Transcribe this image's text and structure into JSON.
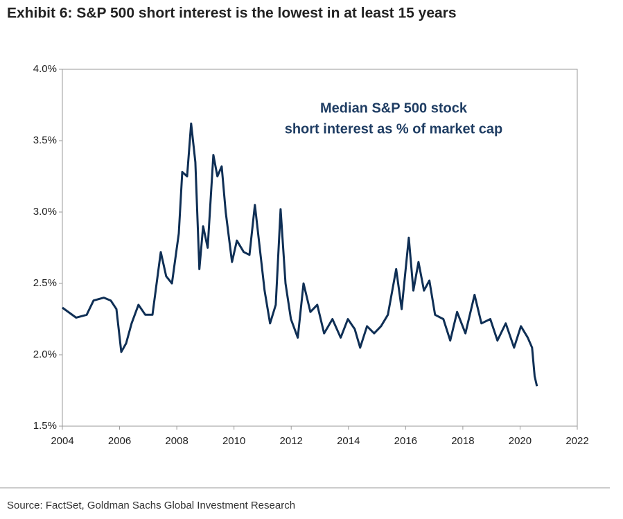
{
  "chart_data": {
    "type": "line",
    "title": "Exhibit 6: S&P 500 short interest is the lowest in at least 15 years",
    "annotation": [
      "Median S&P 500 stock",
      "short interest as % of market cap"
    ],
    "source": "Source: FactSet, Goldman Sachs Global Investment Research",
    "color": "#0f2f55",
    "x": [
      2004.0,
      2004.48,
      2004.85,
      2005.09,
      2005.45,
      2005.69,
      2005.89,
      2006.06,
      2006.23,
      2006.42,
      2006.66,
      2006.9,
      2007.15,
      2007.44,
      2007.63,
      2007.83,
      2008.07,
      2008.19,
      2008.36,
      2008.5,
      2008.65,
      2008.79,
      2008.92,
      2009.08,
      2009.28,
      2009.42,
      2009.57,
      2009.71,
      2009.93,
      2010.1,
      2010.34,
      2010.54,
      2010.73,
      2010.9,
      2011.07,
      2011.26,
      2011.46,
      2011.63,
      2011.8,
      2011.99,
      2012.23,
      2012.43,
      2012.67,
      2012.91,
      2013.15,
      2013.44,
      2013.73,
      2013.98,
      2014.22,
      2014.41,
      2014.65,
      2014.9,
      2015.14,
      2015.38,
      2015.67,
      2015.86,
      2016.11,
      2016.27,
      2016.45,
      2016.64,
      2016.83,
      2017.03,
      2017.32,
      2017.56,
      2017.8,
      2018.09,
      2018.41,
      2018.65,
      2018.96,
      2019.21,
      2019.5,
      2019.79,
      2020.03,
      2020.27,
      2020.42,
      2020.51,
      2020.59
    ],
    "values": [
      2.33,
      2.26,
      2.28,
      2.38,
      2.4,
      2.38,
      2.32,
      2.02,
      2.08,
      2.22,
      2.35,
      2.28,
      2.28,
      2.72,
      2.55,
      2.5,
      2.85,
      3.28,
      3.25,
      3.62,
      3.35,
      2.6,
      2.9,
      2.75,
      3.4,
      3.25,
      3.32,
      3.0,
      2.65,
      2.8,
      2.72,
      2.7,
      3.05,
      2.75,
      2.45,
      2.22,
      2.35,
      3.02,
      2.5,
      2.25,
      2.12,
      2.5,
      2.3,
      2.35,
      2.15,
      2.25,
      2.12,
      2.25,
      2.18,
      2.05,
      2.2,
      2.15,
      2.2,
      2.28,
      2.6,
      2.32,
      2.82,
      2.45,
      2.65,
      2.45,
      2.52,
      2.28,
      2.25,
      2.1,
      2.3,
      2.15,
      2.42,
      2.22,
      2.25,
      2.1,
      2.22,
      2.05,
      2.2,
      2.12,
      2.05,
      1.85,
      1.78
    ],
    "xlim": [
      2004,
      2022
    ],
    "xticks": [
      2004,
      2006,
      2008,
      2010,
      2012,
      2014,
      2016,
      2018,
      2020,
      2022
    ],
    "ylim": [
      1.5,
      4.0
    ],
    "yticks": [
      {
        "value": 1.5,
        "label": "1.5%"
      },
      {
        "value": 2.0,
        "label": "2.0%"
      },
      {
        "value": 2.5,
        "label": "2.5%"
      },
      {
        "value": 3.0,
        "label": "3.0%"
      },
      {
        "value": 3.5,
        "label": "3.5%"
      },
      {
        "value": 4.0,
        "label": "4.0%"
      }
    ],
    "grid": false
  }
}
